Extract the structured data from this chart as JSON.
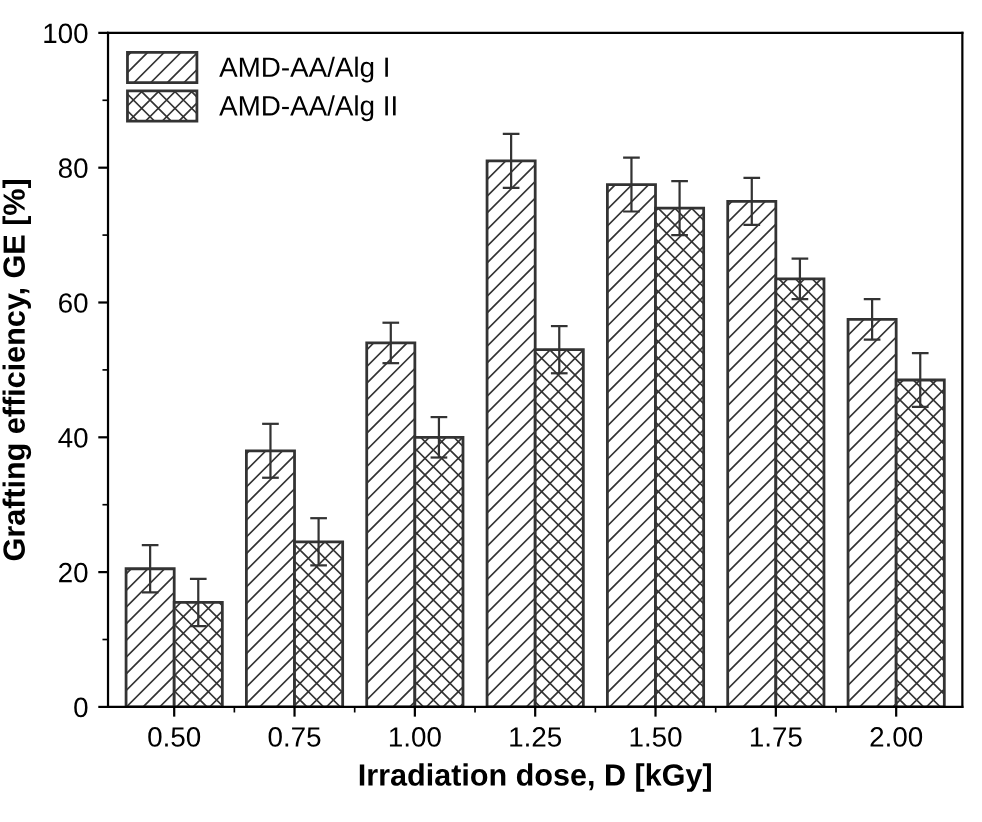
{
  "chart_data": {
    "type": "bar",
    "xlabel": "Irradiation dose, D [kGy]",
    "ylabel": "Grafting efficiency, GE [%]",
    "categories": [
      "0.50",
      "0.75",
      "1.00",
      "1.25",
      "1.50",
      "1.75",
      "2.00"
    ],
    "series": [
      {
        "name": "AMD-AA/Alg I",
        "color": "#333333",
        "values": [
          20.5,
          38,
          54,
          81,
          77.5,
          75,
          57.5
        ],
        "errors": [
          3.5,
          4,
          3,
          4,
          4,
          3.5,
          3
        ]
      },
      {
        "name": "AMD-AA/Alg II",
        "color": "#333333",
        "values": [
          15.5,
          24.5,
          40,
          53,
          74,
          63.5,
          48.5
        ],
        "errors": [
          3.5,
          3.5,
          3,
          3.5,
          4,
          3,
          4
        ]
      }
    ],
    "ylim": [
      0,
      100
    ],
    "yticks": [
      0,
      20,
      40,
      60,
      80,
      100
    ],
    "grid": false,
    "legend": "top left"
  }
}
